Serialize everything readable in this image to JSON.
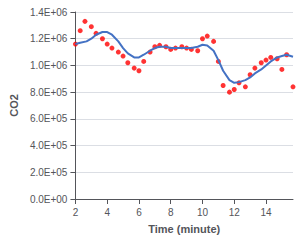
{
  "chart_data": {
    "type": "line",
    "title": "",
    "xlabel": "Time (minute)",
    "ylabel": "CO2",
    "xlim": [
      2,
      15.7
    ],
    "ylim": [
      0,
      1400000
    ],
    "xticks": [
      2,
      4,
      6,
      8,
      10,
      12,
      14
    ],
    "yticks": [
      {
        "value": 0,
        "label": "0.0E+00"
      },
      {
        "value": 200000,
        "label": "2.0E+05"
      },
      {
        "value": 400000,
        "label": "4.0E+05"
      },
      {
        "value": 600000,
        "label": "6.0E+05"
      },
      {
        "value": 800000,
        "label": "8.0E+05"
      },
      {
        "value": 1000000,
        "label": "1.0E+06"
      },
      {
        "value": 1200000,
        "label": "1.2E+06"
      },
      {
        "value": 1400000,
        "label": "1.4E+06"
      }
    ],
    "grid": true,
    "series": [
      {
        "type": "scatter",
        "color": "#FF0000",
        "marker": "circle",
        "x": [
          2.0,
          2.3,
          2.6,
          3.0,
          3.3,
          3.7,
          4.0,
          4.3,
          4.7,
          5.0,
          5.3,
          5.7,
          6.0,
          6.3,
          6.7,
          7.0,
          7.3,
          7.7,
          8.0,
          8.3,
          8.7,
          9.0,
          9.3,
          9.7,
          10.0,
          10.3,
          10.7,
          11.0,
          11.3,
          11.7,
          12.0,
          12.3,
          12.7,
          13.0,
          13.3,
          13.7,
          14.0,
          14.3,
          14.7,
          15.0,
          15.3,
          15.7
        ],
        "values": [
          1160000,
          1260000,
          1330000,
          1290000,
          1240000,
          1200000,
          1160000,
          1130000,
          1100000,
          1070000,
          1020000,
          980000,
          960000,
          1030000,
          1100000,
          1140000,
          1150000,
          1140000,
          1120000,
          1130000,
          1140000,
          1130000,
          1120000,
          1110000,
          1200000,
          1220000,
          1180000,
          1030000,
          850000,
          800000,
          820000,
          870000,
          840000,
          930000,
          980000,
          1020000,
          1040000,
          1060000,
          1050000,
          970000,
          1080000,
          840000
        ]
      },
      {
        "type": "line",
        "color": "#4472C4",
        "line_style": "solid",
        "x": [
          2.0,
          2.3,
          2.7,
          3.0,
          3.3,
          3.7,
          4.0,
          4.3,
          4.7,
          5.0,
          5.3,
          5.7,
          6.0,
          6.3,
          6.7,
          7.0,
          7.3,
          7.7,
          8.0,
          8.3,
          8.7,
          9.0,
          9.3,
          9.7,
          10.0,
          10.3,
          10.7,
          11.0,
          11.3,
          11.7,
          12.0,
          12.3,
          12.7,
          13.0,
          13.3,
          13.7,
          14.0,
          14.3,
          14.7,
          15.0,
          15.3,
          15.7
        ],
        "values": [
          1160000,
          1170000,
          1180000,
          1200000,
          1230000,
          1250000,
          1250000,
          1230000,
          1180000,
          1130000,
          1090000,
          1060000,
          1060000,
          1080000,
          1110000,
          1130000,
          1140000,
          1140000,
          1130000,
          1130000,
          1130000,
          1130000,
          1130000,
          1140000,
          1155000,
          1150000,
          1110000,
          1040000,
          960000,
          890000,
          870000,
          875000,
          890000,
          910000,
          940000,
          970000,
          1000000,
          1030000,
          1060000,
          1070000,
          1080000,
          1065000
        ]
      }
    ]
  }
}
